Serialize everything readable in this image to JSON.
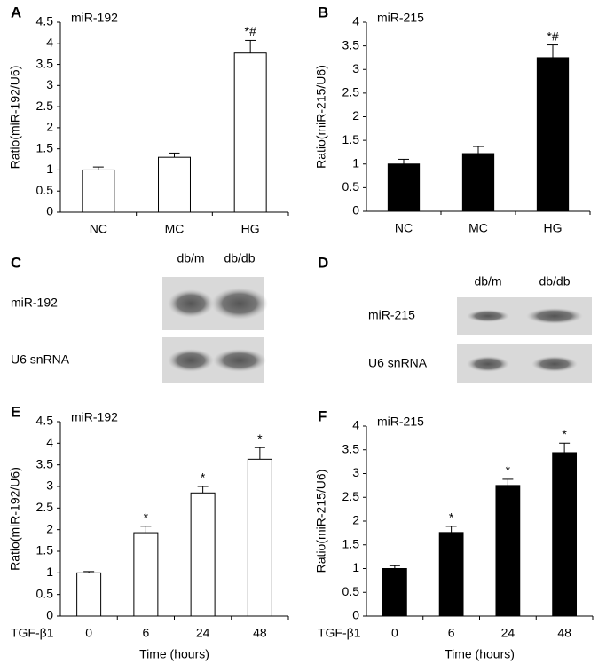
{
  "chart_data": [
    {
      "panel": "A",
      "type": "bar",
      "title": "miR-192",
      "ylabel": "Ratio(miR-192/U6)",
      "categories": [
        "NC",
        "MC",
        "HG"
      ],
      "values": [
        1.0,
        1.3,
        3.77
      ],
      "errors": [
        0.07,
        0.1,
        0.3
      ],
      "annotations": [
        null,
        null,
        "*#"
      ],
      "color": "#ffffff",
      "edgecolor": "#000000",
      "ylim": [
        0,
        4.5
      ],
      "yticks": [
        0,
        0.5,
        1,
        1.5,
        2,
        2.5,
        3,
        3.5,
        4,
        4.5
      ]
    },
    {
      "panel": "B",
      "type": "bar",
      "title": "miR-215",
      "ylabel": "Ratio(miR-215/U6)",
      "categories": [
        "NC",
        "MC",
        "HG"
      ],
      "values": [
        1.0,
        1.22,
        3.25
      ],
      "errors": [
        0.1,
        0.15,
        0.27
      ],
      "annotations": [
        null,
        null,
        "*#"
      ],
      "color": "#000000",
      "edgecolor": "#000000",
      "ylim": [
        0,
        4
      ],
      "yticks": [
        0,
        0.5,
        1,
        1.5,
        2,
        2.5,
        3,
        3.5,
        4
      ]
    },
    {
      "panel": "E",
      "type": "bar",
      "title": "miR-192",
      "ylabel": "Ratio(miR-192/U6)",
      "xlabel": "Time (hours)",
      "row_label": "TGF-β1",
      "categories": [
        "0",
        "6",
        "24",
        "48"
      ],
      "values": [
        1.0,
        1.93,
        2.85,
        3.63
      ],
      "errors": [
        0.03,
        0.15,
        0.15,
        0.27
      ],
      "annotations": [
        null,
        "*",
        "*",
        "*"
      ],
      "color": "#ffffff",
      "edgecolor": "#000000",
      "ylim": [
        0,
        4.5
      ],
      "yticks": [
        0,
        0.5,
        1,
        1.5,
        2,
        2.5,
        3,
        3.5,
        4,
        4.5
      ]
    },
    {
      "panel": "F",
      "type": "bar",
      "title": "miR-215",
      "ylabel": "Ratio(miR-215/U6)",
      "xlabel": "Time (hours)",
      "row_label": "TGF-β1",
      "categories": [
        "0",
        "6",
        "24",
        "48"
      ],
      "values": [
        1.0,
        1.76,
        2.75,
        3.44
      ],
      "errors": [
        0.06,
        0.13,
        0.13,
        0.2
      ],
      "annotations": [
        null,
        "*",
        "*",
        "*"
      ],
      "color": "#000000",
      "edgecolor": "#000000",
      "ylim": [
        0,
        4
      ],
      "yticks": [
        0,
        0.5,
        1,
        1.5,
        2,
        2.5,
        3,
        3.5,
        4
      ]
    }
  ],
  "blots": [
    {
      "panel": "C",
      "lanes": [
        "db/m",
        "db/db"
      ],
      "rows": [
        "miR-192",
        "U6 snRNA"
      ]
    },
    {
      "panel": "D",
      "lanes": [
        "db/m",
        "db/db"
      ],
      "rows": [
        "miR-215",
        "U6 snRNA"
      ]
    }
  ]
}
